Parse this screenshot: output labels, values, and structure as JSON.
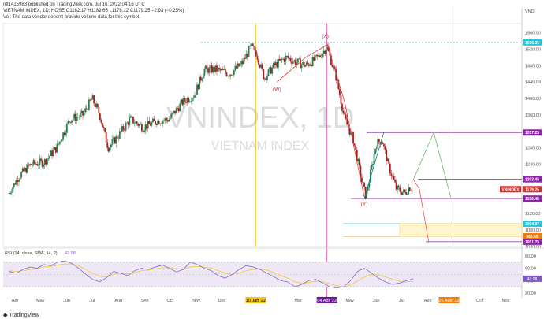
{
  "header": {
    "published": "ntt1415983 published on TradingView.com, Jul 16, 2022 04:16 UTC",
    "ohlc": "VIETNAM INDEX, 1D, HOSE  O1182.17  H1189.66  L1178.12  C1179.25  −2.93 (−0.25%)",
    "vol_note": "Vol: The data vendor doesn't provide volume data for this symbol."
  },
  "watermark": {
    "ticker": "VNINDEX, 1D",
    "name": "VIETNAM INDEX"
  },
  "footer": {
    "brand": "TradingView"
  },
  "colors": {
    "up": "#2e7d4f",
    "down": "#a32121",
    "pink": "#e2409f",
    "purple": "#8e24aa",
    "cyan": "#26c6da",
    "orange": "#f57c00",
    "yellow": "#f5c518",
    "rsi": "#7e57c2",
    "rsi_ma": "#f5c518"
  },
  "chart_data": {
    "type": "line",
    "title": "VIETNAM INDEX, 1D, HOSE",
    "currency_label": "VND",
    "ylim": [
      1040,
      1582
    ],
    "yticks": [
      "1560.00",
      "1520.00",
      "1480.00",
      "1440.00",
      "1400.00",
      "1360.00",
      "1280.00",
      "1240.00",
      "1160.00",
      "1120.00",
      "1080.00",
      "1040.00"
    ],
    "price_badges": [
      {
        "label": "1536.31",
        "value": 1536.31,
        "color": "#26c6da"
      },
      {
        "label": "1317.25",
        "value": 1317.25,
        "color": "#8e24aa"
      },
      {
        "label": "1203.45",
        "value": 1203.45,
        "color": "#8e24aa"
      },
      {
        "label": "1179.25",
        "value": 1179.25,
        "color": "#d32f2f"
      },
      {
        "label": "1156.46",
        "value": 1156.46,
        "color": "#8e24aa"
      },
      {
        "label": "1051.75",
        "value": 1051.75,
        "color": "#8e24aa"
      },
      {
        "label": "1004.97",
        "value": 1004.97,
        "color": "#26c6da"
      },
      {
        "label": "966.65",
        "value": 966.65,
        "color": "#f57c00"
      }
    ],
    "ticker_badge": "VNINDEX",
    "x_labels": [
      "Apr",
      "May",
      "Jun",
      "Jul",
      "Aug",
      "Sep",
      "Oct",
      "Nov",
      "Dec",
      "10 Jan '22",
      "Mar",
      "04 Apr '22",
      "May",
      "Jun",
      "Jul",
      "Aug",
      "26 Aug '22",
      "Oct",
      "Nov"
    ],
    "wave_labels": [
      {
        "label": "(X)",
        "date": "Apr",
        "value": 1540
      },
      {
        "label": "(W)",
        "date": "Feb",
        "value": 1420
      },
      {
        "label": "(Y)",
        "date": "May",
        "value": 1147
      }
    ],
    "close_series": {
      "name": "VNINDEX",
      "points": [
        [
          "2021-03-25",
          1170
        ],
        [
          "2021-04-05",
          1210
        ],
        [
          "2021-04-20",
          1240
        ],
        [
          "2021-05-05",
          1245
        ],
        [
          "2021-05-20",
          1280
        ],
        [
          "2021-06-05",
          1350
        ],
        [
          "2021-06-20",
          1360
        ],
        [
          "2021-07-01",
          1400
        ],
        [
          "2021-07-10",
          1360
        ],
        [
          "2021-07-20",
          1280
        ],
        [
          "2021-08-01",
          1310
        ],
        [
          "2021-08-15",
          1350
        ],
        [
          "2021-08-30",
          1330
        ],
        [
          "2021-09-15",
          1345
        ],
        [
          "2021-09-30",
          1350
        ],
        [
          "2021-10-15",
          1390
        ],
        [
          "2021-10-30",
          1410
        ],
        [
          "2021-11-10",
          1470
        ],
        [
          "2021-11-25",
          1470
        ],
        [
          "2021-12-10",
          1460
        ],
        [
          "2021-12-25",
          1485
        ],
        [
          "2022-01-04",
          1525
        ],
        [
          "2022-01-10",
          1515
        ],
        [
          "2022-01-20",
          1450
        ],
        [
          "2022-02-01",
          1480
        ],
        [
          "2022-02-15",
          1500
        ],
        [
          "2022-02-25",
          1490
        ],
        [
          "2022-03-10",
          1480
        ],
        [
          "2022-03-25",
          1500
        ],
        [
          "2022-04-04",
          1525
        ],
        [
          "2022-04-15",
          1450
        ],
        [
          "2022-04-25",
          1350
        ],
        [
          "2022-05-05",
          1300
        ],
        [
          "2022-05-15",
          1200
        ],
        [
          "2022-05-20",
          1160
        ],
        [
          "2022-06-01",
          1290
        ],
        [
          "2022-06-08",
          1300
        ],
        [
          "2022-06-15",
          1240
        ],
        [
          "2022-06-25",
          1180
        ],
        [
          "2022-07-05",
          1170
        ],
        [
          "2022-07-10",
          1185
        ],
        [
          "2022-07-15",
          1179.25
        ]
      ]
    },
    "rsi": {
      "name": "RSI (14, close, SMA, 14, 2)",
      "current": "43.08",
      "ylim": [
        20,
        90
      ],
      "yticks": [
        "80.00",
        "60.00",
        "40.00",
        "20.00"
      ],
      "values": [
        55,
        52,
        58,
        62,
        60,
        66,
        64,
        70,
        72,
        68,
        60,
        50,
        42,
        38,
        45,
        55,
        52,
        48,
        56,
        60,
        58,
        62,
        65,
        60,
        54,
        58,
        70,
        66,
        60,
        56,
        48,
        44,
        50,
        58,
        64,
        62,
        58,
        52,
        46,
        40,
        38,
        30,
        34,
        40,
        42,
        36,
        30,
        28,
        30,
        40,
        55,
        60,
        52,
        44,
        38,
        34,
        36,
        40,
        43
      ],
      "ma_values": [
        56,
        55,
        56,
        58,
        60,
        62,
        63,
        65,
        67,
        67,
        64,
        58,
        52,
        47,
        46,
        50,
        52,
        51,
        53,
        56,
        57,
        59,
        61,
        61,
        59,
        59,
        62,
        63,
        62,
        60,
        56,
        52,
        50,
        52,
        56,
        58,
        59,
        57,
        53,
        48,
        44,
        38,
        36,
        37,
        39,
        38,
        35,
        32,
        30,
        33,
        40,
        46,
        50,
        49,
        46,
        42,
        39,
        38,
        39
      ]
    }
  }
}
